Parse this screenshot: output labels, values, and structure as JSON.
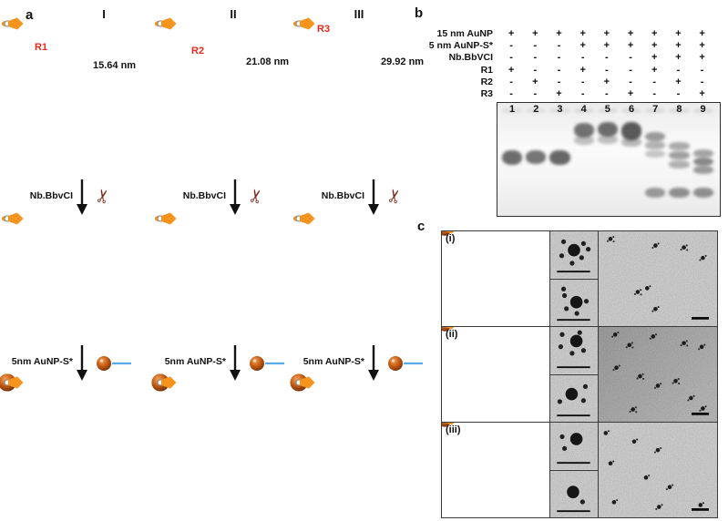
{
  "figure": {
    "panel_a": {
      "label": "a",
      "nick_label": "Nb.BbvCI",
      "conjugate_label": "5nm AuNP-S*",
      "columns": [
        {
          "numeral": "I",
          "r_label": "R1",
          "length": "15.64 nm"
        },
        {
          "numeral": "II",
          "r_label": "R2",
          "length": "21.08 nm"
        },
        {
          "numeral": "III",
          "r_label": "R3",
          "length": "29.92 nm"
        }
      ]
    },
    "panel_b": {
      "label": "b",
      "table": {
        "rows": [
          {
            "name": "15 nm AuNP",
            "values": [
              "+",
              "+",
              "+",
              "+",
              "+",
              "+",
              "+",
              "+",
              "+"
            ]
          },
          {
            "name": "5 nm AuNP-S*",
            "values": [
              "-",
              "-",
              "-",
              "+",
              "+",
              "+",
              "+",
              "+",
              "+"
            ]
          },
          {
            "name": "Nb.BbVCI",
            "values": [
              "-",
              "-",
              "-",
              "-",
              "-",
              "-",
              "+",
              "+",
              "+"
            ]
          },
          {
            "name": "R1",
            "values": [
              "+",
              "-",
              "-",
              "+",
              "-",
              "-",
              "+",
              "-",
              "-"
            ]
          },
          {
            "name": "R2",
            "values": [
              "-",
              "+",
              "-",
              "-",
              "+",
              "-",
              "-",
              "+",
              "-"
            ]
          },
          {
            "name": "R3",
            "values": [
              "-",
              "-",
              "+",
              "-",
              "-",
              "+",
              "-",
              "-",
              "+"
            ]
          }
        ]
      },
      "gel": {
        "lane_numbers": [
          "1",
          "2",
          "3",
          "4",
          "5",
          "6",
          "7",
          "8",
          "9"
        ],
        "lanes": [
          {
            "bands": [
              {
                "y": 5,
                "h": 4,
                "a": 0.1
              },
              {
                "y": 42,
                "h": 13,
                "a": 0.75
              }
            ]
          },
          {
            "bands": [
              {
                "y": 5,
                "h": 4,
                "a": 0.1
              },
              {
                "y": 42,
                "h": 12,
                "a": 0.7
              }
            ]
          },
          {
            "bands": [
              {
                "y": 5,
                "h": 4,
                "a": 0.1
              },
              {
                "y": 42,
                "h": 13,
                "a": 0.78
              }
            ]
          },
          {
            "bands": [
              {
                "y": 5,
                "h": 4,
                "a": 0.12
              },
              {
                "y": 18,
                "h": 13,
                "a": 0.72
              },
              {
                "y": 29,
                "h": 8,
                "a": 0.3
              }
            ]
          },
          {
            "bands": [
              {
                "y": 5,
                "h": 4,
                "a": 0.12
              },
              {
                "y": 17,
                "h": 13,
                "a": 0.75
              },
              {
                "y": 28,
                "h": 8,
                "a": 0.3
              }
            ]
          },
          {
            "bands": [
              {
                "y": 5,
                "h": 4,
                "a": 0.12
              },
              {
                "y": 17,
                "h": 16,
                "a": 0.85
              },
              {
                "y": 31,
                "h": 8,
                "a": 0.35
              }
            ]
          },
          {
            "bands": [
              {
                "y": 5,
                "h": 4,
                "a": 0.12
              },
              {
                "y": 26,
                "h": 8,
                "a": 0.5
              },
              {
                "y": 34,
                "h": 7,
                "a": 0.38
              },
              {
                "y": 42,
                "h": 6,
                "a": 0.28
              },
              {
                "y": 75,
                "h": 9,
                "a": 0.5
              }
            ]
          },
          {
            "bands": [
              {
                "y": 5,
                "h": 4,
                "a": 0.12
              },
              {
                "y": 35,
                "h": 7,
                "a": 0.42
              },
              {
                "y": 43,
                "h": 7,
                "a": 0.48
              },
              {
                "y": 51,
                "h": 7,
                "a": 0.38
              },
              {
                "y": 75,
                "h": 9,
                "a": 0.55
              }
            ]
          },
          {
            "bands": [
              {
                "y": 5,
                "h": 4,
                "a": 0.12
              },
              {
                "y": 41,
                "h": 7,
                "a": 0.45
              },
              {
                "y": 48,
                "h": 8,
                "a": 0.6
              },
              {
                "y": 56,
                "h": 7,
                "a": 0.5
              },
              {
                "y": 75,
                "h": 9,
                "a": 0.55
              }
            ]
          }
        ]
      }
    },
    "panel_c": {
      "label": "c",
      "rows": [
        {
          "label": "(i)",
          "closeups": [
            {
              "big": [
                50,
                40
              ],
              "smalls": [
                [
                  28,
                  22
                ],
                [
                  70,
                  26
                ],
                [
                  24,
                  52
                ],
                [
                  46,
                  68
                ],
                [
                  66,
                  56
                ],
                [
                  80,
                  38
                ]
              ]
            },
            {
              "big": [
                55,
                48
              ],
              "smalls": [
                [
                  30,
                  34
                ],
                [
                  34,
                  62
                ],
                [
                  56,
                  72
                ],
                [
                  76,
                  46
                ],
                [
                  28,
                  20
                ]
              ]
            }
          ],
          "field": {
            "shade": "light",
            "clusters": [
              [
                10,
                8,
                3
              ],
              [
                48,
                15,
                2
              ],
              [
                72,
                17,
                3
              ],
              [
                88,
                28,
                2
              ],
              [
                33,
                64,
                3
              ],
              [
                48,
                82,
                2
              ],
              [
                41,
                60,
                1
              ]
            ]
          }
        },
        {
          "label": "(ii)",
          "closeups": [
            {
              "big": [
                55,
                30
              ],
              "smalls": [
                [
                  25,
                  16
                ],
                [
                  22,
                  42
                ],
                [
                  46,
                  56
                ],
                [
                  70,
                  50
                ],
                [
                  62,
                  12
                ]
              ]
            },
            {
              "big": [
                45,
                40
              ],
              "smalls": [
                [
                  20,
                  56
                ],
                [
                  70,
                  54
                ],
                [
                  74,
                  24
                ]
              ]
            }
          ],
          "field": {
            "shade": "dark",
            "clusters": [
              [
                14,
                8,
                2
              ],
              [
                26,
                19,
                3
              ],
              [
                46,
                10,
                2
              ],
              [
                72,
                17,
                3
              ],
              [
                87,
                21,
                2
              ],
              [
                15,
                43,
                2
              ],
              [
                35,
                52,
                3
              ],
              [
                50,
                62,
                2
              ],
              [
                65,
                57,
                3
              ],
              [
                78,
                75,
                2
              ],
              [
                29,
                87,
                3
              ],
              [
                88,
                86,
                2
              ]
            ]
          }
        },
        {
          "label": "(iii)",
          "closeups": [
            {
              "big": [
                55,
                35
              ],
              "smalls": [
                [
                  30,
                  55
                ],
                [
                  25,
                  30
                ]
              ]
            },
            {
              "big": [
                48,
                45
              ],
              "smalls": [
                [
                  68,
                  66
                ]
              ]
            }
          ],
          "field": {
            "shade": "light",
            "clusters": [
              [
                6,
                11,
                1
              ],
              [
                50,
                29,
                2
              ],
              [
                10,
                43,
                1
              ],
              [
                40,
                58,
                1
              ],
              [
                60,
                68,
                2
              ],
              [
                13,
                84,
                1
              ],
              [
                51,
                89,
                2
              ],
              [
                86,
                87,
                1
              ],
              [
                30,
                20,
                1
              ]
            ]
          }
        }
      ]
    },
    "icons": {
      "scissors": "✂"
    },
    "colors": {
      "core_red": "#cf2510",
      "core_yellow": "#e3de3a",
      "satellite_brown": "#c2590f",
      "ligand_orange": "#f7941d",
      "tip_blue": "#58abe8",
      "arm_teal": "#0f847c",
      "arm_purple": "#8e1b62",
      "r_label_red": "#e8291c",
      "gel_band": "#3f3f3f"
    }
  }
}
